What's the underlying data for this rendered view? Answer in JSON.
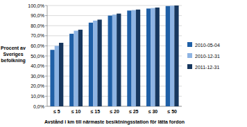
{
  "chart_data": {
    "type": "bar",
    "y_label": "Procent av Sveriges befolkning",
    "x_label": "Avstånd i km till närmaste besiktningsstation för lätta fordon",
    "categories": [
      "≤ 5",
      "≤ 10",
      "≤ 15",
      "≤ 20",
      "≤ 25",
      "≤ 30",
      "≤ 50"
    ],
    "series": [
      {
        "name": "2010-05-04",
        "color": "#1f5fa6",
        "values": [
          56,
          72,
          83,
          90,
          95,
          97,
          99.5
        ]
      },
      {
        "name": "2010-12-31",
        "color": "#8eb4e3",
        "values": [
          60,
          75,
          85,
          91,
          95.5,
          97.5,
          99.8
        ]
      },
      {
        "name": "2011-12-31",
        "color": "#17375e",
        "values": [
          63,
          76,
          86,
          92,
          96,
          98,
          100
        ]
      }
    ],
    "ylim": [
      0,
      100
    ],
    "yticks": [
      {
        "value": 0,
        "label": "0,0%"
      },
      {
        "value": 10,
        "label": "10,0%"
      },
      {
        "value": 20,
        "label": "20,0%"
      },
      {
        "value": 30,
        "label": "30,0%"
      },
      {
        "value": 40,
        "label": "40,0%"
      },
      {
        "value": 50,
        "label": "50,0%"
      },
      {
        "value": 60,
        "label": "60,0%"
      },
      {
        "value": 70,
        "label": "70,0%"
      },
      {
        "value": 80,
        "label": "80,0%"
      },
      {
        "value": 90,
        "label": "90,0%"
      },
      {
        "value": 100,
        "label": "100,0%"
      }
    ],
    "grid": true,
    "legend": "right"
  }
}
